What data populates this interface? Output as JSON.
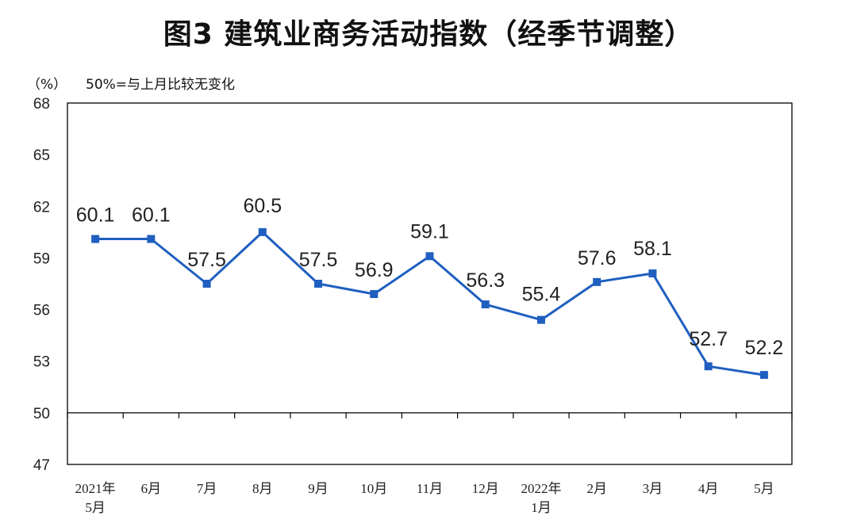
{
  "title": "图3  建筑业商务活动指数（经季节调整）",
  "unit_label": "（%）",
  "note": "50%=与上月比较无变化",
  "colors": {
    "series": "#1f5fc0",
    "axis": "#000000"
  },
  "chart_data": {
    "type": "line",
    "categories": [
      [
        "2021年",
        "5月"
      ],
      [
        "6月"
      ],
      [
        "7月"
      ],
      [
        "8月"
      ],
      [
        "9月"
      ],
      [
        "10月"
      ],
      [
        "11月"
      ],
      [
        "12月"
      ],
      [
        "2022年",
        "1月"
      ],
      [
        "2月"
      ],
      [
        "3月"
      ],
      [
        "4月"
      ],
      [
        "5月"
      ]
    ],
    "series": [
      {
        "values": [
          60.1,
          60.1,
          57.5,
          60.5,
          57.5,
          56.9,
          59.1,
          56.3,
          55.4,
          57.6,
          58.1,
          52.7,
          52.2
        ]
      }
    ],
    "data_labels": [
      "60.1",
      "60.1",
      "57.5",
      "60.5",
      "57.5",
      "56.9",
      "59.1",
      "56.3",
      "55.4",
      "57.6",
      "58.1",
      "52.7",
      "52.2"
    ],
    "ylim": [
      47,
      68
    ],
    "yticks": [
      47,
      50,
      53,
      56,
      59,
      62,
      65,
      68
    ],
    "baseline": 50,
    "grid": false,
    "legend": "none"
  }
}
